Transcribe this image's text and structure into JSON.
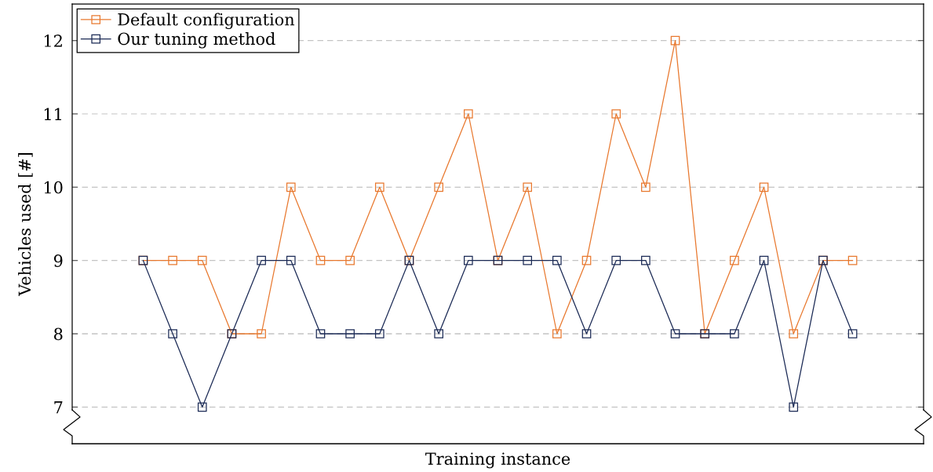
{
  "chart_data": {
    "type": "line",
    "xlabel": "Training instance",
    "ylabel": "Vehicles used [#]",
    "categories": [
      null,
      null,
      null,
      null,
      null,
      null,
      null,
      null,
      null,
      null,
      null,
      null,
      null,
      null,
      null,
      null,
      null,
      null,
      null,
      null,
      null,
      null,
      null,
      null,
      null
    ],
    "series": [
      {
        "name": "Default configuration",
        "color": "#e8782e",
        "values": [
          9,
          9,
          9,
          8,
          8,
          10,
          9,
          9,
          10,
          9,
          10,
          11,
          9,
          10,
          8,
          9,
          11,
          10,
          12,
          8,
          9,
          10,
          8,
          9,
          9
        ]
      },
      {
        "name": "Our tuning method",
        "color": "#1b2a55",
        "values": [
          9,
          8,
          7,
          8,
          9,
          9,
          8,
          8,
          8,
          9,
          8,
          9,
          9,
          9,
          9,
          8,
          9,
          9,
          8,
          8,
          8,
          9,
          7,
          9,
          8
        ]
      }
    ],
    "ylim": [
      6.5,
      12.5
    ],
    "yticks": [
      7,
      8,
      9,
      10,
      11,
      12
    ],
    "grid": "y",
    "legend": "top left",
    "marker": "square",
    "line_style": "solid",
    "tick_labels": "y"
  }
}
